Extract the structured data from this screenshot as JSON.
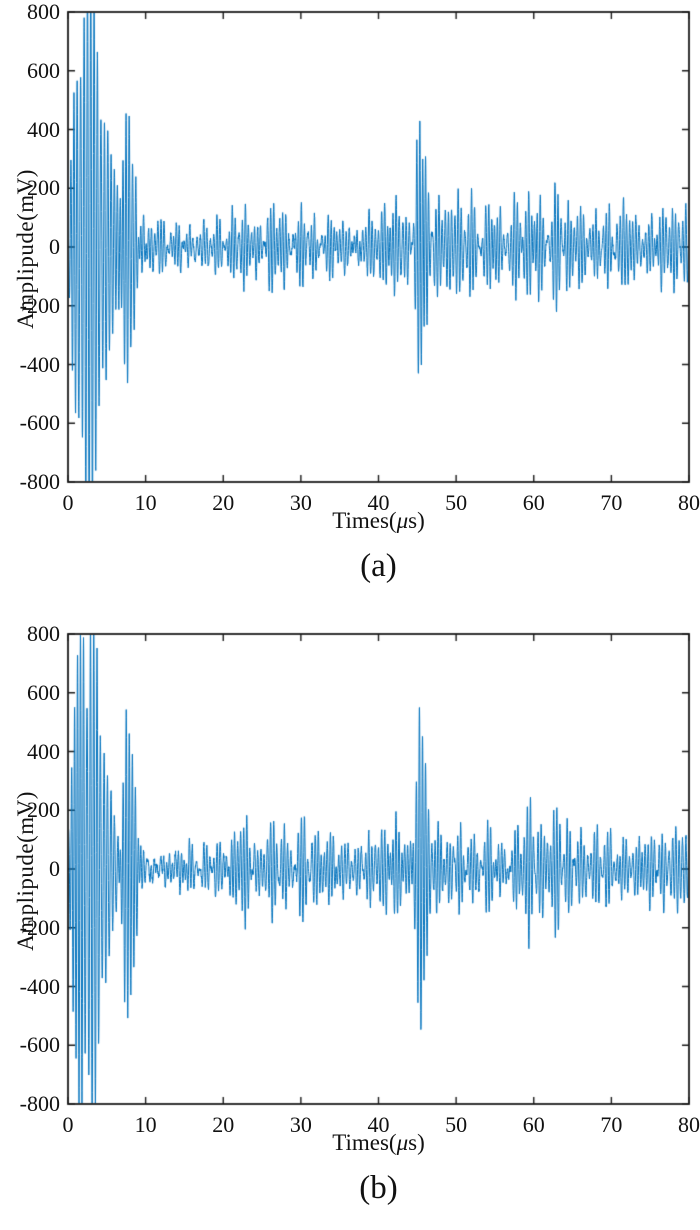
{
  "page": {
    "background": "#ffffff"
  },
  "chart_data": [
    {
      "type": "line",
      "panel_id": "a",
      "caption": "(a)",
      "ylabel": "Amplipude(mV)",
      "xlabel": "Times(μs)",
      "xlabel_parts": {
        "pre": "Times(",
        "mu": "μ",
        "post": "s)"
      },
      "xlim": [
        0,
        80
      ],
      "ylim": [
        -800,
        800
      ],
      "x_ticks": [
        0,
        10,
        20,
        30,
        40,
        50,
        60,
        70,
        80
      ],
      "y_ticks": [
        800,
        600,
        400,
        200,
        0,
        -200,
        -400,
        -600,
        -800
      ],
      "grid": false,
      "legend": "none",
      "line_color": "#0072BD",
      "axis_color": "#1a1a1a",
      "carrier_freq_mhz": 2.5,
      "seed": 13,
      "noise_mv": 8,
      "ripple": [
        [
          26,
          2.35,
          0.7
        ],
        [
          17,
          1.13,
          2.1
        ],
        [
          12,
          3.05,
          4.2
        ],
        [
          9,
          0.52,
          1.0
        ]
      ],
      "bursts": [
        [
          0.5,
          140,
          0.3
        ],
        [
          1.2,
          600,
          0.55
        ],
        [
          2.0,
          690,
          0.5
        ],
        [
          2.85,
          775,
          0.5
        ],
        [
          3.7,
          600,
          0.5
        ],
        [
          4.6,
          420,
          0.5
        ],
        [
          5.5,
          260,
          0.45
        ],
        [
          6.4,
          150,
          0.4
        ],
        [
          7.6,
          500,
          0.5
        ],
        [
          8.6,
          250,
          0.45
        ],
        [
          9.5,
          120,
          0.4
        ],
        [
          10.6,
          70,
          0.45
        ],
        [
          12.0,
          60,
          0.45
        ],
        [
          14.3,
          95,
          0.5
        ],
        [
          15.8,
          70,
          0.45
        ],
        [
          17.5,
          55,
          0.45
        ],
        [
          19.3,
          70,
          0.45
        ],
        [
          21.3,
          135,
          0.5
        ],
        [
          22.8,
          150,
          0.5
        ],
        [
          24.2,
          85,
          0.45
        ],
        [
          26.2,
          145,
          0.5
        ],
        [
          27.8,
          115,
          0.45
        ],
        [
          30.1,
          160,
          0.5
        ],
        [
          31.7,
          130,
          0.45
        ],
        [
          33.7,
          140,
          0.5
        ],
        [
          35.5,
          70,
          0.45
        ],
        [
          37.2,
          55,
          0.45
        ],
        [
          38.8,
          90,
          0.45
        ],
        [
          40.7,
          145,
          0.5
        ],
        [
          42.2,
          160,
          0.5
        ],
        [
          43.6,
          120,
          0.45
        ],
        [
          45.2,
          480,
          0.4
        ],
        [
          46.1,
          240,
          0.4
        ],
        [
          47.6,
          160,
          0.45
        ],
        [
          49.0,
          105,
          0.45
        ],
        [
          50.3,
          150,
          0.45
        ],
        [
          52.0,
          140,
          0.5
        ],
        [
          54.0,
          160,
          0.5
        ],
        [
          55.6,
          120,
          0.45
        ],
        [
          57.6,
          150,
          0.45
        ],
        [
          59.3,
          210,
          0.45
        ],
        [
          60.8,
          160,
          0.45
        ],
        [
          62.8,
          225,
          0.45
        ],
        [
          64.4,
          150,
          0.45
        ],
        [
          66.0,
          110,
          0.45
        ],
        [
          68.0,
          120,
          0.5
        ],
        [
          69.6,
          130,
          0.45
        ],
        [
          71.5,
          130,
          0.5
        ],
        [
          73.1,
          110,
          0.45
        ],
        [
          75.0,
          120,
          0.5
        ],
        [
          76.6,
          100,
          0.45
        ],
        [
          78.2,
          120,
          0.5
        ],
        [
          79.6,
          105,
          0.4
        ]
      ]
    },
    {
      "type": "line",
      "panel_id": "b",
      "caption": "(b)",
      "ylabel": "Amplipude(mV)",
      "xlabel": "Times(μs)",
      "xlabel_parts": {
        "pre": "Times(",
        "mu": "μ",
        "post": "s)"
      },
      "xlim": [
        0,
        80
      ],
      "ylim": [
        -800,
        800
      ],
      "x_ticks": [
        0,
        10,
        20,
        30,
        40,
        50,
        60,
        70,
        80
      ],
      "y_ticks": [
        800,
        600,
        400,
        200,
        0,
        -200,
        -400,
        -600,
        -800
      ],
      "grid": false,
      "legend": "none",
      "line_color": "#0072BD",
      "axis_color": "#1a1a1a",
      "carrier_freq_mhz": 2.5,
      "seed": 29,
      "noise_mv": 8,
      "ripple": [
        [
          25,
          2.3,
          1.2
        ],
        [
          18,
          1.09,
          0.4
        ],
        [
          12,
          3.12,
          3.1
        ],
        [
          9,
          0.5,
          2.0
        ]
      ],
      "bursts": [
        [
          0.5,
          150,
          0.3
        ],
        [
          1.2,
          590,
          0.55
        ],
        [
          2.0,
          680,
          0.5
        ],
        [
          2.9,
          795,
          0.5
        ],
        [
          3.8,
          620,
          0.5
        ],
        [
          4.7,
          430,
          0.5
        ],
        [
          5.6,
          260,
          0.45
        ],
        [
          6.5,
          150,
          0.4
        ],
        [
          7.5,
          510,
          0.5
        ],
        [
          8.6,
          255,
          0.45
        ],
        [
          9.5,
          125,
          0.4
        ],
        [
          10.6,
          65,
          0.45
        ],
        [
          12.1,
          60,
          0.45
        ],
        [
          14.4,
          90,
          0.5
        ],
        [
          15.9,
          70,
          0.45
        ],
        [
          17.6,
          55,
          0.45
        ],
        [
          19.4,
          75,
          0.45
        ],
        [
          21.4,
          130,
          0.5
        ],
        [
          22.9,
          150,
          0.5
        ],
        [
          24.3,
          85,
          0.45
        ],
        [
          26.3,
          150,
          0.5
        ],
        [
          27.9,
          115,
          0.45
        ],
        [
          30.2,
          165,
          0.5
        ],
        [
          31.8,
          130,
          0.45
        ],
        [
          33.8,
          140,
          0.5
        ],
        [
          35.6,
          70,
          0.45
        ],
        [
          37.3,
          55,
          0.45
        ],
        [
          38.9,
          95,
          0.45
        ],
        [
          40.8,
          150,
          0.5
        ],
        [
          42.3,
          155,
          0.5
        ],
        [
          43.7,
          120,
          0.45
        ],
        [
          45.3,
          525,
          0.4
        ],
        [
          46.2,
          245,
          0.4
        ],
        [
          47.7,
          165,
          0.45
        ],
        [
          49.1,
          105,
          0.45
        ],
        [
          50.4,
          155,
          0.45
        ],
        [
          52.1,
          140,
          0.5
        ],
        [
          54.1,
          160,
          0.5
        ],
        [
          55.7,
          125,
          0.45
        ],
        [
          57.7,
          150,
          0.45
        ],
        [
          59.4,
          220,
          0.45
        ],
        [
          60.9,
          160,
          0.45
        ],
        [
          62.9,
          235,
          0.45
        ],
        [
          64.5,
          150,
          0.45
        ],
        [
          66.1,
          110,
          0.45
        ],
        [
          68.1,
          120,
          0.5
        ],
        [
          69.7,
          130,
          0.45
        ],
        [
          71.6,
          130,
          0.5
        ],
        [
          73.2,
          110,
          0.45
        ],
        [
          75.1,
          120,
          0.5
        ],
        [
          76.7,
          100,
          0.45
        ],
        [
          78.3,
          120,
          0.5
        ],
        [
          79.6,
          105,
          0.4
        ]
      ]
    }
  ]
}
